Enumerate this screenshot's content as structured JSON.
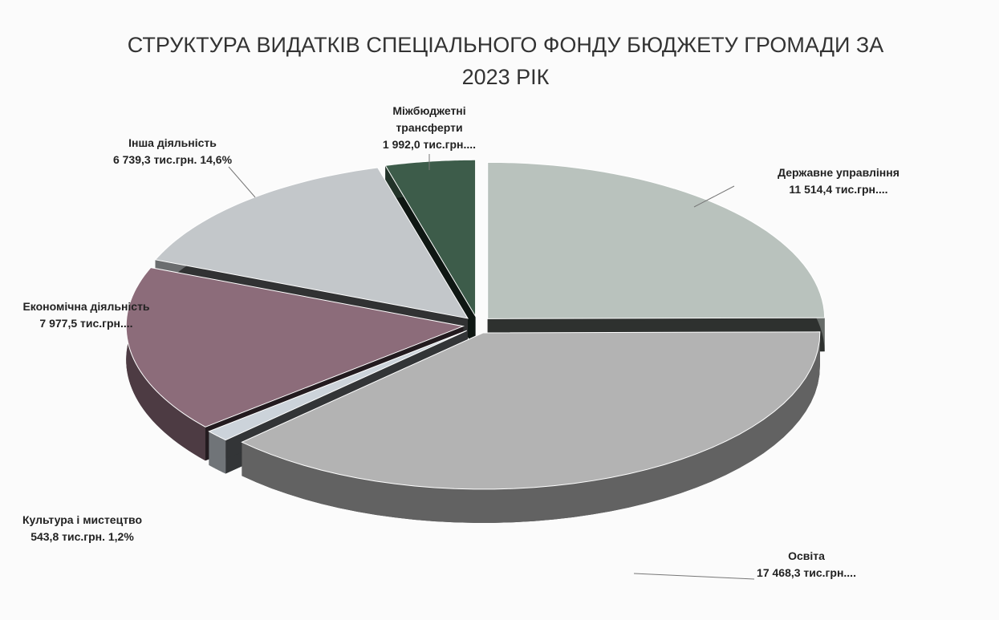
{
  "chart_data": {
    "type": "pie",
    "title": "СТРУКТУРА ВИДАТКІВ СПЕЦІАЛЬНОГО ФОНДУ БЮДЖЕТУ ГРОМАДИ ЗА 2023 РІК",
    "categories": [
      "Державне управління",
      "Освіта",
      "Культура і мистецтво",
      "Економічна діяльність",
      "Інша діяльність",
      "Міжбюджетні трансферти"
    ],
    "values": [
      11514.4,
      17468.3,
      543.8,
      7977.5,
      6739.3,
      1992.0
    ],
    "value_labels": [
      "11 514,4 тис.грн....",
      "17 468,3 тис.грн....",
      "543,8 тис.грн. 1,2%",
      "7 977,5 тис.грн....",
      "6 739,3 тис.грн. 14,6%",
      "1 992,0 тис.грн...."
    ],
    "colors": [
      "#b9c2bd",
      "#b3b3b3",
      "#ccd3da",
      "#8c6c7a",
      "#c3c7ca",
      "#3d5c4a"
    ]
  }
}
